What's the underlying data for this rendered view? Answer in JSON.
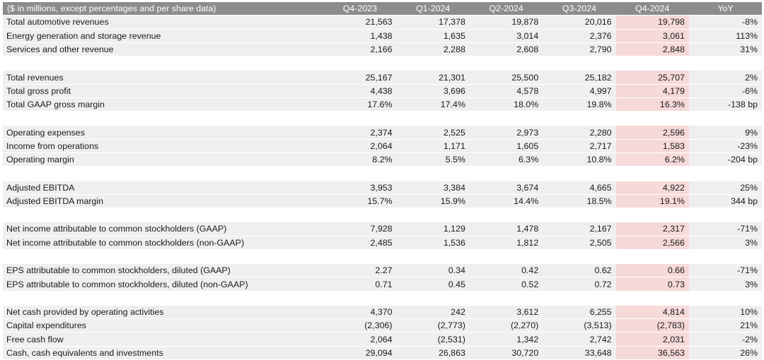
{
  "table": {
    "header": [
      "($ in millions, except percentages and per share data)",
      "Q4-2023",
      "Q1-2024",
      "Q2-2024",
      "Q3-2024",
      "Q4-2024",
      "YoY"
    ],
    "highlight_column_color": "#f6d9d9",
    "header_color": "#8c8c8c",
    "groups": [
      [
        [
          "Total automotive revenues",
          "21,563",
          "17,378",
          "19,878",
          "20,016",
          "19,798",
          "-8%"
        ],
        [
          "Energy generation and storage revenue",
          "1,438",
          "1,635",
          "3,014",
          "2,376",
          "3,061",
          "113%"
        ],
        [
          "Services and other revenue",
          "2,166",
          "2,288",
          "2,608",
          "2,790",
          "2,848",
          "31%"
        ]
      ],
      [
        [
          "Total revenues",
          "25,167",
          "21,301",
          "25,500",
          "25,182",
          "25,707",
          "2%"
        ],
        [
          "Total gross profit",
          "4,438",
          "3,696",
          "4,578",
          "4,997",
          "4,179",
          "-6%"
        ],
        [
          "Total GAAP gross margin",
          "17.6%",
          "17.4%",
          "18.0%",
          "19.8%",
          "16.3%",
          "-138 bp"
        ]
      ],
      [
        [
          "Operating expenses",
          "2,374",
          "2,525",
          "2,973",
          "2,280",
          "2,596",
          "9%"
        ],
        [
          "Income from operations",
          "2,064",
          "1,171",
          "1,605",
          "2,717",
          "1,583",
          "-23%"
        ],
        [
          "Operating margin",
          "8.2%",
          "5.5%",
          "6.3%",
          "10.8%",
          "6.2%",
          "-204 bp"
        ]
      ],
      [
        [
          "Adjusted EBITDA",
          "3,953",
          "3,384",
          "3,674",
          "4,665",
          "4,922",
          "25%"
        ],
        [
          "Adjusted EBITDA margin",
          "15.7%",
          "15.9%",
          "14.4%",
          "18.5%",
          "19.1%",
          "344 bp"
        ]
      ],
      [
        [
          "Net income attributable to common stockholders (GAAP)",
          "7,928",
          "1,129",
          "1,478",
          "2,167",
          "2,317",
          "-71%"
        ],
        [
          "Net income attributable to common stockholders (non-GAAP)",
          "2,485",
          "1,536",
          "1,812",
          "2,505",
          "2,566",
          "3%"
        ]
      ],
      [
        [
          "EPS attributable to common stockholders, diluted (GAAP)",
          "2.27",
          "0.34",
          "0.42",
          "0.62",
          "0.66",
          "-71%"
        ],
        [
          "EPS attributable to common stockholders, diluted (non-GAAP)",
          "0.71",
          "0.45",
          "0.52",
          "0.72",
          "0.73",
          "3%"
        ]
      ],
      [
        [
          "Net cash provided by operating activities",
          "4,370",
          "242",
          "3,612",
          "6,255",
          "4,814",
          "10%"
        ],
        [
          "Capital expenditures",
          "(2,306)",
          "(2,773)",
          "(2,270)",
          "(3,513)",
          "(2,783)",
          "21%"
        ],
        [
          "Free cash flow",
          "2,064",
          "(2,531)",
          "1,342",
          "2,742",
          "2,031",
          "-2%"
        ],
        [
          "Cash, cash equivalents and investments",
          "29,094",
          "26,863",
          "30,720",
          "33,648",
          "36,563",
          "26%"
        ]
      ]
    ]
  }
}
